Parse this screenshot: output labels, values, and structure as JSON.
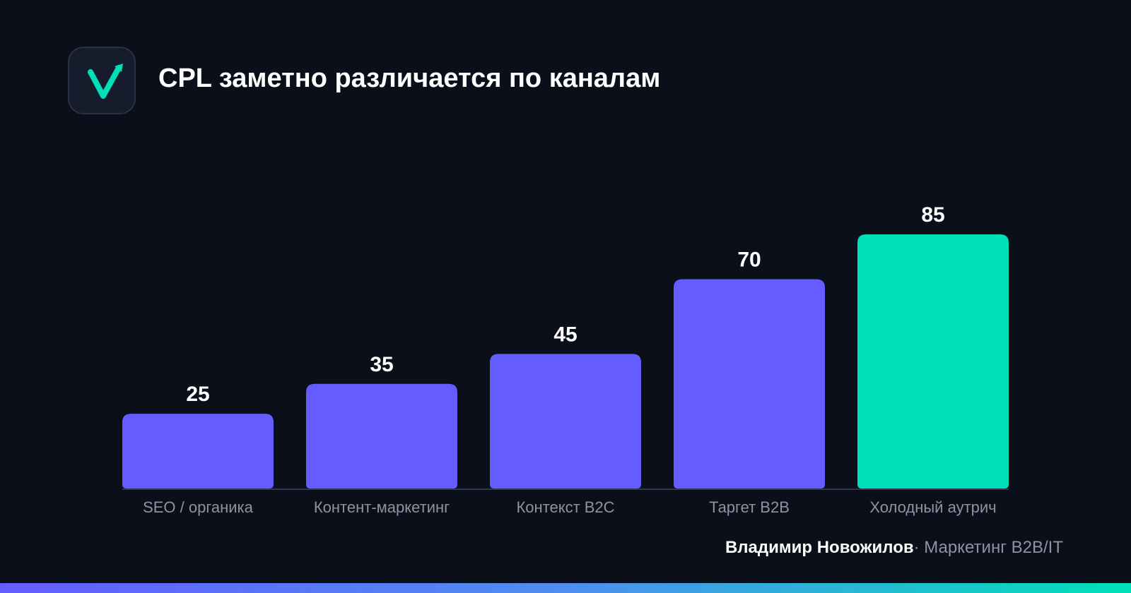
{
  "title": "CPL заметно различается по каналам",
  "logo": {
    "icon": "check-arrow-icon",
    "color": "#00e0b8"
  },
  "chart_data": {
    "type": "bar",
    "title": "CPL заметно различается по каналам",
    "xlabel": "",
    "ylabel": "",
    "categories": [
      "SEO / органика",
      "Контент-маркетинг",
      "Контекст B2C",
      "Таргет B2B",
      "Холодный аутрич"
    ],
    "values": [
      25,
      35,
      45,
      70,
      85
    ],
    "data_labels": [
      "25",
      "35",
      "45",
      "70",
      "85"
    ],
    "ylim": [
      0,
      100
    ],
    "grid": false,
    "legend": "none",
    "colors": [
      "#645cff",
      "#645cff",
      "#645cff",
      "#645cff",
      "#00e0b8"
    ]
  },
  "footer": {
    "author": "Владимир Новожилов",
    "separator": "·",
    "role": "Маркетинг B2B/IT"
  },
  "colors": {
    "background": "#0b0f1a",
    "primary_bar": "#645cff",
    "highlight_bar": "#00e0b8",
    "axis": "#2f3650",
    "label": "#8e93a3"
  }
}
